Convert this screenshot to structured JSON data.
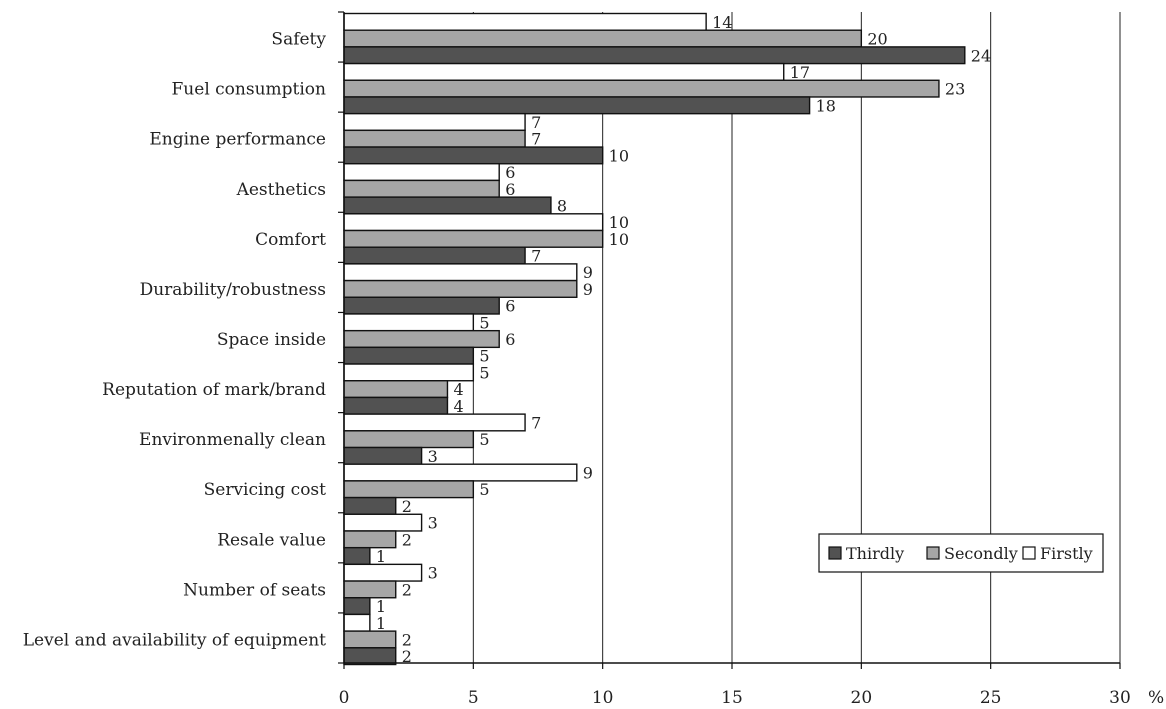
{
  "chart_data": {
    "type": "bar",
    "orientation": "horizontal",
    "categories": [
      "Safety",
      "Fuel consumption",
      "Engine performance",
      "Aesthetics",
      "Comfort",
      "Durability/robustness",
      "Space inside",
      "Reputation of mark/brand",
      "Environmenally clean",
      "Servicing cost",
      "Resale value",
      "Number of seats",
      "Level and availability of equipment"
    ],
    "series": [
      {
        "name": "Firstly",
        "color": "#ffffff",
        "values": [
          14,
          17,
          7,
          6,
          10,
          9,
          5,
          5,
          7,
          9,
          3,
          3,
          1
        ]
      },
      {
        "name": "Secondly",
        "color": "#a6a6a6",
        "values": [
          20,
          23,
          7,
          6,
          10,
          9,
          6,
          4,
          5,
          5,
          2,
          2,
          2
        ]
      },
      {
        "name": "Thirdly",
        "color": "#525252",
        "values": [
          24,
          18,
          10,
          8,
          7,
          6,
          5,
          4,
          3,
          2,
          1,
          1,
          2
        ]
      }
    ],
    "legend_order": [
      "Thirdly",
      "Secondly",
      "Firstly"
    ],
    "legend_position": "bottom-right",
    "xlim": [
      0,
      30
    ],
    "x_ticks": [
      "0",
      "5",
      "10",
      "15",
      "20",
      "25",
      "30"
    ],
    "x_unit": "%",
    "grid": "vertical",
    "title": "",
    "xlabel": "",
    "ylabel": ""
  }
}
